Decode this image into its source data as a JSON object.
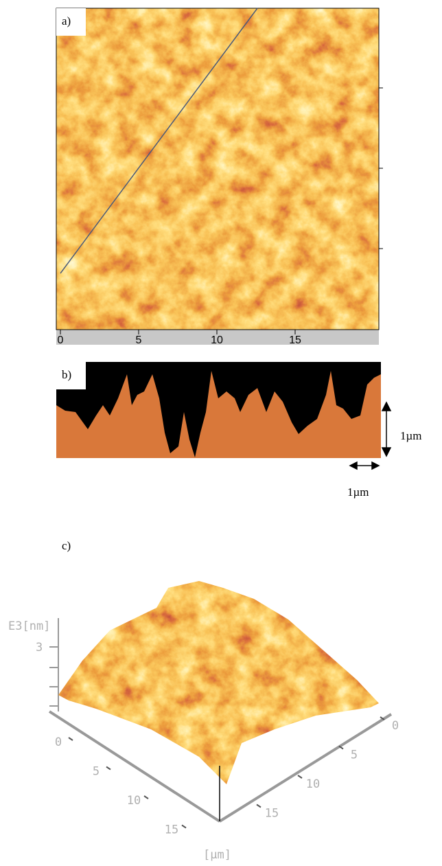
{
  "panel_a": {
    "label": "a)",
    "xticks": [
      0,
      5,
      10,
      15
    ]
  },
  "panel_b": {
    "label": "b)",
    "scale_vertical": "1µm",
    "scale_horizontal": "1µm"
  },
  "panel_c": {
    "label": "c)",
    "z_axis_label": "E3[nm]",
    "z_tick": "3",
    "left_axis_ticks": [
      0,
      5,
      10,
      15
    ],
    "right_axis_ticks": [
      0,
      5,
      10,
      15
    ],
    "axis_unit": "[µm]"
  }
}
